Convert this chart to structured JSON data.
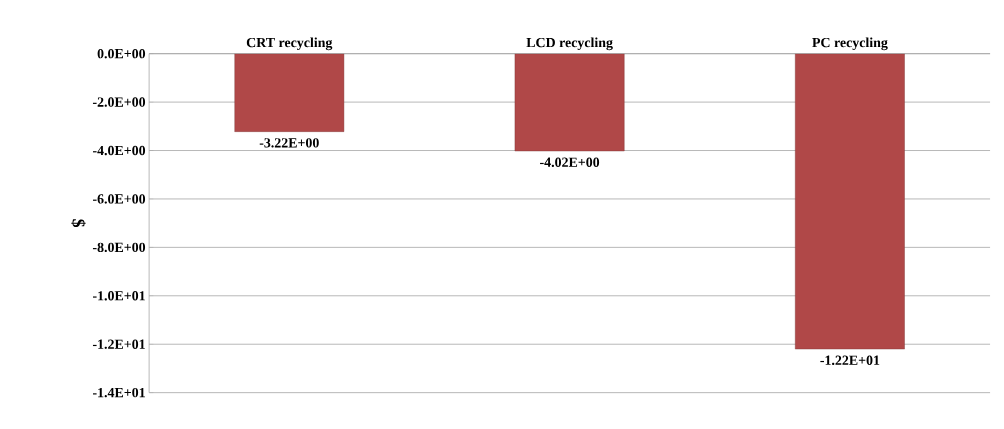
{
  "chart_data": {
    "type": "bar",
    "categories": [
      "CRT recycling",
      "LCD recycling",
      "PC recycling"
    ],
    "values": [
      -3.22,
      -4.02,
      -12.2
    ],
    "value_labels": [
      "-3.22E+00",
      "-4.02E+00",
      "-1.22E+01"
    ],
    "color": "#b04848",
    "ylabel": "$",
    "ylim": [
      -14,
      0
    ],
    "yticks": [
      {
        "value": 0,
        "label": "0.0E+00"
      },
      {
        "value": -2,
        "label": "-2.0E+00"
      },
      {
        "value": -4,
        "label": "-4.0E+00"
      },
      {
        "value": -6,
        "label": "-6.0E+00"
      },
      {
        "value": -8,
        "label": "-8.0E+00"
      },
      {
        "value": -10,
        "label": "-1.0E+01"
      },
      {
        "value": -12,
        "label": "-1.2E+01"
      },
      {
        "value": -14,
        "label": "-1.4E+01"
      }
    ],
    "grid": "y"
  }
}
